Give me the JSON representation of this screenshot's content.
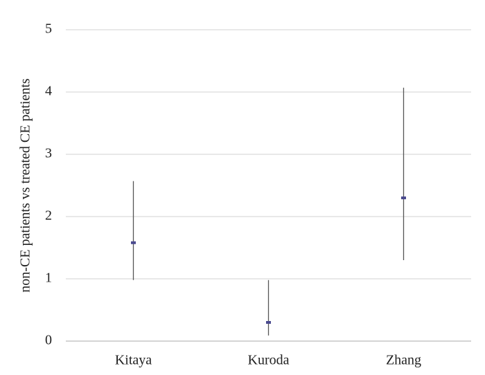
{
  "chart_data": {
    "type": "errorbar",
    "y_label": "non-CE patients vs treated CE patients",
    "categories": [
      "Kitaya",
      "Kuroda",
      "Zhang"
    ],
    "values": [
      1.58,
      0.3,
      2.3
    ],
    "low": [
      0.98,
      0.09,
      1.3
    ],
    "high": [
      2.57,
      0.98,
      4.07
    ],
    "color": "#4b4b8f",
    "range_color": "#555555",
    "ylim": [
      0,
      5
    ],
    "yticks": [
      0,
      1,
      2,
      3,
      4,
      5
    ],
    "grid": true
  }
}
